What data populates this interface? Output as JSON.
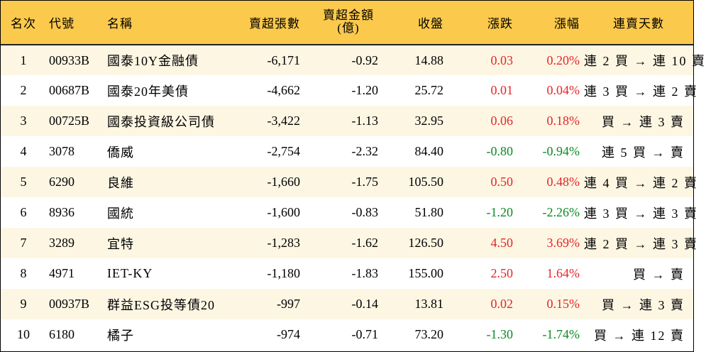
{
  "headers": {
    "rank": "名次",
    "code": "代號",
    "name": "名稱",
    "net_sell_shares": "賣超張數",
    "net_sell_amount_line1": "賣超金額",
    "net_sell_amount_line2": "(億)",
    "close": "收盤",
    "change": "漲跌",
    "change_pct": "漲幅",
    "streak": "連賣天數"
  },
  "rows": [
    {
      "rank": "1",
      "code": "00933B",
      "name": "國泰10Y金融債",
      "shares": "-6,171",
      "amount": "-0.92",
      "close": "14.88",
      "change": "0.03",
      "pct": "0.20%",
      "dir": "up",
      "streak": "連 2 買 → 連 10 賣"
    },
    {
      "rank": "2",
      "code": "00687B",
      "name": "國泰20年美債",
      "shares": "-4,662",
      "amount": "-1.20",
      "close": "25.72",
      "change": "0.01",
      "pct": "0.04%",
      "dir": "up",
      "streak": "連 3 買 → 連 2 賣"
    },
    {
      "rank": "3",
      "code": "00725B",
      "name": "國泰投資級公司債",
      "shares": "-3,422",
      "amount": "-1.13",
      "close": "32.95",
      "change": "0.06",
      "pct": "0.18%",
      "dir": "up",
      "streak": "買 → 連 3 賣"
    },
    {
      "rank": "4",
      "code": "3078",
      "name": "僑威",
      "shares": "-2,754",
      "amount": "-2.32",
      "close": "84.40",
      "change": "-0.80",
      "pct": "-0.94%",
      "dir": "down",
      "streak": "連 5 買 → 賣"
    },
    {
      "rank": "5",
      "code": "6290",
      "name": "良維",
      "shares": "-1,660",
      "amount": "-1.75",
      "close": "105.50",
      "change": "0.50",
      "pct": "0.48%",
      "dir": "up",
      "streak": "連 4 買 → 連 2 賣"
    },
    {
      "rank": "6",
      "code": "8936",
      "name": "國統",
      "shares": "-1,600",
      "amount": "-0.83",
      "close": "51.80",
      "change": "-1.20",
      "pct": "-2.26%",
      "dir": "down",
      "streak": "連 3 買 → 連 3 賣"
    },
    {
      "rank": "7",
      "code": "3289",
      "name": "宜特",
      "shares": "-1,283",
      "amount": "-1.62",
      "close": "126.50",
      "change": "4.50",
      "pct": "3.69%",
      "dir": "up",
      "streak": "連 2 買 → 連 3 賣"
    },
    {
      "rank": "8",
      "code": "4971",
      "name": "IET-KY",
      "shares": "-1,180",
      "amount": "-1.83",
      "close": "155.00",
      "change": "2.50",
      "pct": "1.64%",
      "dir": "up",
      "streak": "買 → 賣"
    },
    {
      "rank": "9",
      "code": "00937B",
      "name": "群益ESG投等債20",
      "shares": "-997",
      "amount": "-0.14",
      "close": "13.81",
      "change": "0.02",
      "pct": "0.15%",
      "dir": "up",
      "streak": "買 → 連 3 賣"
    },
    {
      "rank": "10",
      "code": "6180",
      "name": "橘子",
      "shares": "-974",
      "amount": "-0.71",
      "close": "73.20",
      "change": "-1.30",
      "pct": "-1.74%",
      "dir": "down",
      "streak": "買 → 連 12 賣"
    }
  ],
  "colors": {
    "header_bg": "#fbc94c",
    "odd_row_bg": "#fdf6e3",
    "even_row_bg": "#ffffff",
    "up": "#e4252a",
    "down": "#0b8a24"
  }
}
